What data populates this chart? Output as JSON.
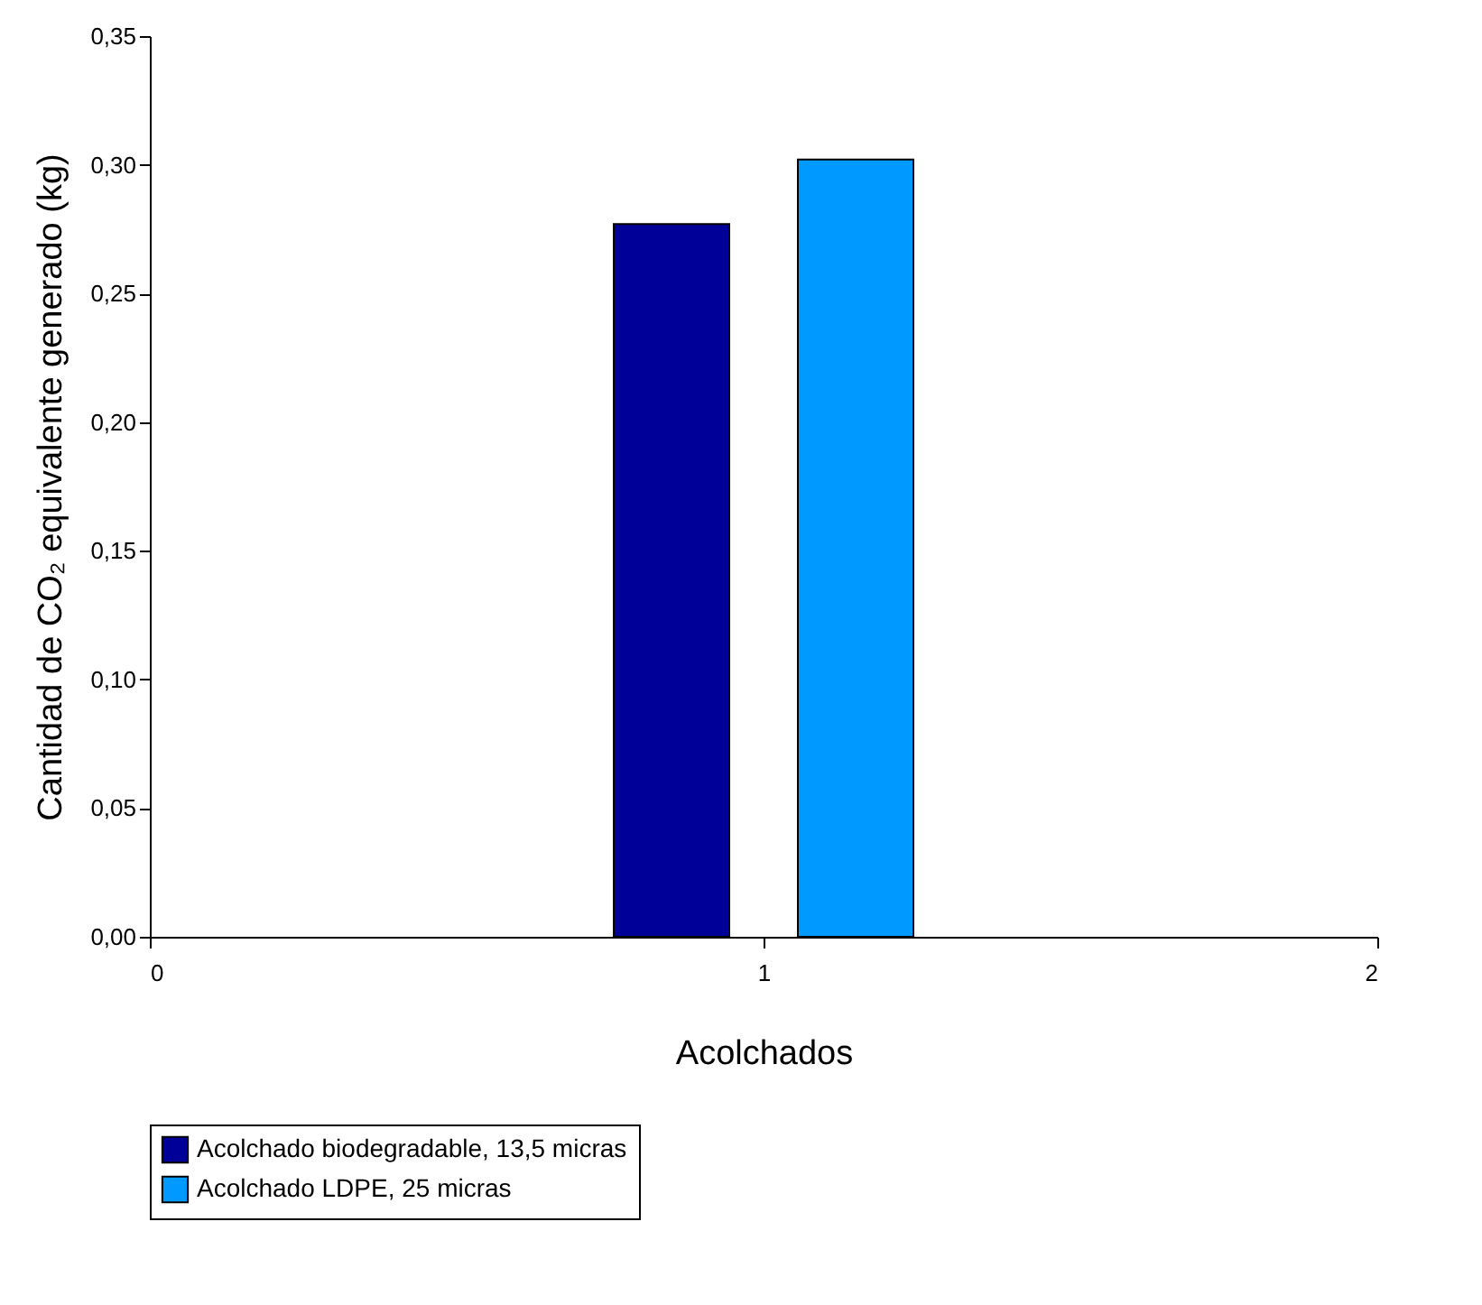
{
  "chart_data": {
    "type": "bar",
    "xlabel": "Acolchados",
    "ylabel": "Cantidad de CO₂ equivalente generado (kg)",
    "series": [
      {
        "name": "Acolchado biodegradable, 13,5 micras",
        "color": "#000099",
        "x": [
          0.85
        ],
        "values": [
          0.277
        ]
      },
      {
        "name": "Acolchado LDPE, 25 micras",
        "color": "#0099ff",
        "x": [
          1.15
        ],
        "values": [
          0.302
        ]
      }
    ],
    "xlim": [
      0,
      2
    ],
    "xticks": [
      0,
      1,
      2
    ],
    "ylim": [
      0,
      0.35
    ],
    "yticks": [
      {
        "value": 0,
        "label": "0,00"
      },
      {
        "value": 0.05,
        "label": "0,05"
      },
      {
        "value": 0.1,
        "label": "0,10"
      },
      {
        "value": 0.15,
        "label": "0,15"
      },
      {
        "value": 0.2,
        "label": "0,20"
      },
      {
        "value": 0.25,
        "label": "0,25"
      },
      {
        "value": 0.3,
        "label": "0,30"
      },
      {
        "value": 0.35,
        "label": "0,35"
      }
    ],
    "grid": false,
    "legend": "bottom"
  }
}
